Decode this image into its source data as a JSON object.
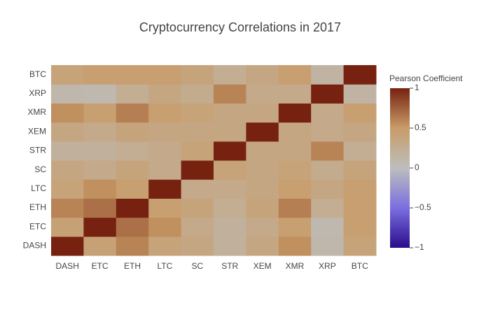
{
  "chart_data": {
    "type": "heatmap",
    "title": "Cryptocurrency Correlations in 2017",
    "x": [
      "DASH",
      "ETC",
      "ETH",
      "LTC",
      "SC",
      "STR",
      "XEM",
      "XMR",
      "XRP",
      "BTC"
    ],
    "y": [
      "DASH",
      "ETC",
      "ETH",
      "LTC",
      "SC",
      "STR",
      "XEM",
      "XMR",
      "XRP",
      "BTC"
    ],
    "z": [
      [
        1,
        0.42,
        0.6,
        0.4,
        0.35,
        0.2,
        0.35,
        0.55,
        0.1,
        0.4
      ],
      [
        0.42,
        1,
        0.68,
        0.55,
        0.3,
        0.2,
        0.3,
        0.45,
        0.08,
        0.45
      ],
      [
        0.6,
        0.68,
        1,
        0.45,
        0.38,
        0.25,
        0.38,
        0.62,
        0.25,
        0.45
      ],
      [
        0.4,
        0.55,
        0.45,
        1,
        0.3,
        0.3,
        0.35,
        0.45,
        0.35,
        0.45
      ],
      [
        0.35,
        0.3,
        0.38,
        0.3,
        1,
        0.4,
        0.35,
        0.4,
        0.28,
        0.38
      ],
      [
        0.2,
        0.2,
        0.25,
        0.3,
        0.4,
        1,
        0.35,
        0.35,
        0.6,
        0.25
      ],
      [
        0.35,
        0.3,
        0.38,
        0.35,
        0.35,
        0.35,
        1,
        0.35,
        0.3,
        0.35
      ],
      [
        0.55,
        0.45,
        0.62,
        0.45,
        0.4,
        0.35,
        0.35,
        1,
        0.3,
        0.45
      ],
      [
        0.1,
        0.08,
        0.25,
        0.35,
        0.28,
        0.6,
        0.3,
        0.3,
        1,
        0.15
      ],
      [
        0.4,
        0.45,
        0.45,
        0.45,
        0.38,
        0.25,
        0.35,
        0.45,
        0.15,
        1
      ]
    ],
    "zlim": [
      -1,
      1
    ],
    "zticks": [
      1,
      0.5,
      0,
      {
        "value": -0.5,
        "label": "−0.5"
      },
      {
        "value": -1,
        "label": "−1"
      }
    ],
    "colorbar_title": "Pearson Coefficient",
    "colorscale": [
      [
        0,
        "#2a0c8c"
      ],
      [
        0.25,
        "#7b6fe0"
      ],
      [
        0.5,
        "#bdbdbd"
      ],
      [
        0.75,
        "#c89c68"
      ],
      [
        1,
        "#772210"
      ]
    ]
  }
}
